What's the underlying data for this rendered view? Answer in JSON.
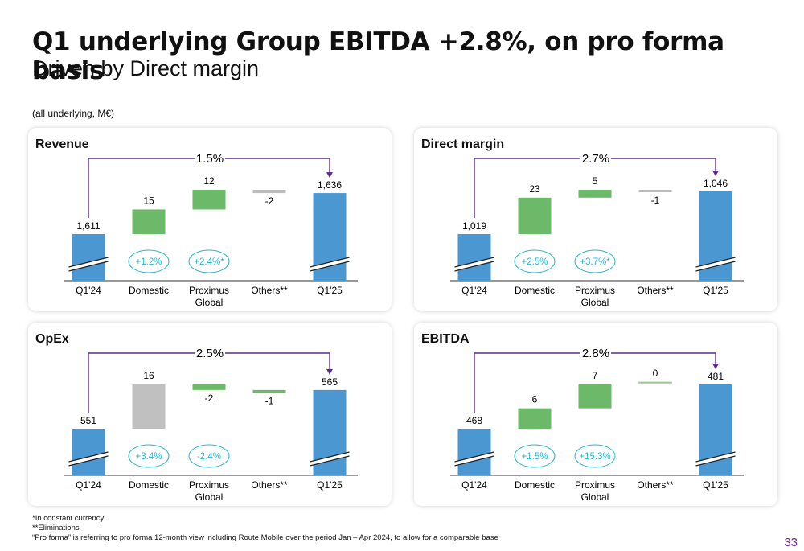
{
  "header": {
    "title": "Q1 underlying Group EBITDA +2.8%, on pro forma basis",
    "subtitle": "Driven by Direct margin",
    "unit_note": "(all underlying, M€)"
  },
  "chart_data": [
    {
      "type": "waterfall",
      "title": "Revenue",
      "categories": [
        "Q1'24",
        "Domestic",
        "Proximus Global",
        "Others**",
        "Q1'25"
      ],
      "values": [
        1611,
        15,
        12,
        -2,
        1636
      ],
      "value_labels": [
        "1,611",
        "15",
        "12",
        "-2",
        "1,636"
      ],
      "growth_badges": [
        "+1.2%",
        "+2.4%*"
      ],
      "overall_growth": "1.5%",
      "axis_break": true
    },
    {
      "type": "waterfall",
      "title": "Direct margin",
      "categories": [
        "Q1'24",
        "Domestic",
        "Proximus Global",
        "Others**",
        "Q1'25"
      ],
      "values": [
        1019,
        23,
        5,
        -1,
        1046
      ],
      "value_labels": [
        "1,019",
        "23",
        "5",
        "-1",
        "1,046"
      ],
      "growth_badges": [
        "+2.5%",
        "+3.7%*"
      ],
      "overall_growth": "2.7%",
      "axis_break": true
    },
    {
      "type": "waterfall",
      "title": "OpEx",
      "categories": [
        "Q1'24",
        "Domestic",
        "Proximus Global",
        "Others**",
        "Q1'25"
      ],
      "values": [
        551,
        16,
        -2,
        -1,
        565
      ],
      "value_labels": [
        "551",
        "16",
        "-2",
        "-1",
        "565"
      ],
      "growth_badges": [
        "+3.4%",
        "-2.4%"
      ],
      "overall_growth": "2.5%",
      "axis_break": true
    },
    {
      "type": "waterfall",
      "title": "EBITDA",
      "categories": [
        "Q1'24",
        "Domestic",
        "Proximus Global",
        "Others**",
        "Q1'25"
      ],
      "values": [
        468,
        6,
        7,
        0,
        481
      ],
      "value_labels": [
        "468",
        "6",
        "7",
        "0",
        "481"
      ],
      "growth_badges": [
        "+1.5%",
        "+15.3%"
      ],
      "overall_growth": "2.8%",
      "axis_break": true
    }
  ],
  "colors": {
    "total_bar": "#4a97d2",
    "positive_bar": "#6db96a",
    "negative_bar": "#bdbdbd",
    "opex_increase_bar": "#c0c0c0",
    "growth_arrow": "#5b2a8c",
    "badge": "#29b6cf",
    "page_number": "#6a2aa0"
  },
  "footnotes": [
    "*In constant currency",
    "**Eliminations",
    "“Pro forma” is referring to pro forma 12-month view including Route Mobile over the period Jan – Apr 2024, to allow for a comparable base"
  ],
  "page_number": "33"
}
